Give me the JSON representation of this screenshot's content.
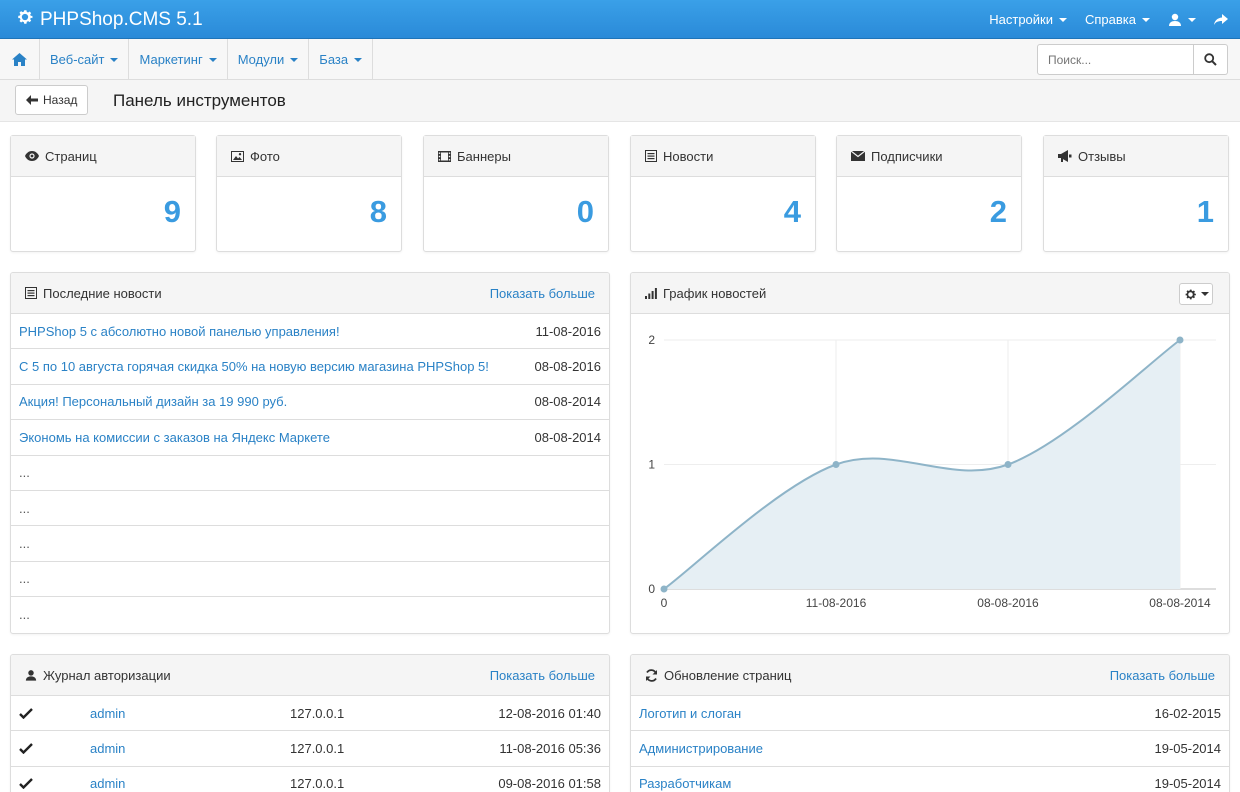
{
  "app": {
    "title": "PHPShop.CMS 5.1"
  },
  "topnav": {
    "settings": "Настройки",
    "help": "Справка"
  },
  "subnav": {
    "items": [
      "Веб-сайт",
      "Маркетинг",
      "Модули",
      "База"
    ]
  },
  "search": {
    "placeholder": "Поиск..."
  },
  "header": {
    "back": "Назад",
    "title": "Панель инструментов"
  },
  "stats": [
    {
      "label": "Страниц",
      "value": "9",
      "icon": "eye-icon"
    },
    {
      "label": "Фото",
      "value": "8",
      "icon": "picture-icon"
    },
    {
      "label": "Баннеры",
      "value": "0",
      "icon": "film-icon"
    },
    {
      "label": "Новости",
      "value": "4",
      "icon": "list-icon"
    },
    {
      "label": "Подписчики",
      "value": "2",
      "icon": "envelope-icon"
    },
    {
      "label": "Отзывы",
      "value": "1",
      "icon": "bullhorn-icon"
    }
  ],
  "news": {
    "title": "Последние новости",
    "more": "Показать больше",
    "items": [
      {
        "text": "PHPShop 5 с абсолютно новой панелью управления!",
        "date": "11-08-2016"
      },
      {
        "text": "С 5 по 10 августа горячая скидка 50% на новую версию магазина PHPShop 5!",
        "date": "08-08-2016"
      },
      {
        "text": "Акция! Персональный дизайн за 19 990 руб.",
        "date": "08-08-2014"
      },
      {
        "text": "Экономь на комиссии с заказов на Яндекс Маркете",
        "date": "08-08-2014"
      }
    ],
    "empty": [
      "...",
      "...",
      "...",
      "...",
      "..."
    ]
  },
  "graph": {
    "title": "График новостей"
  },
  "chart_data": {
    "type": "area",
    "categories": [
      "0",
      "11-08-2016",
      "08-08-2016",
      "08-08-2014"
    ],
    "values": [
      0,
      1,
      1,
      2
    ],
    "yticks": [
      "0",
      "1",
      "2"
    ],
    "ylim": [
      0,
      2
    ],
    "grid": true,
    "line_color": "#8eb4c8",
    "fill_color": "#e6eff4"
  },
  "auth": {
    "title": "Журнал авторизации",
    "more": "Показать больше",
    "rows": [
      {
        "user": "admin",
        "ip": "127.0.0.1",
        "date": "12-08-2016 01:40"
      },
      {
        "user": "admin",
        "ip": "127.0.0.1",
        "date": "11-08-2016 05:36"
      },
      {
        "user": "admin",
        "ip": "127.0.0.1",
        "date": "09-08-2016 01:58"
      }
    ]
  },
  "updates": {
    "title": "Обновление страниц",
    "more": "Показать больше",
    "rows": [
      {
        "text": "Логотип и слоган",
        "date": "16-02-2015"
      },
      {
        "text": "Администрирование",
        "date": "19-05-2014"
      },
      {
        "text": "Разработчикам",
        "date": "19-05-2014"
      }
    ]
  },
  "colors": {
    "accent": "#3a9be0",
    "navbar": "#2a8ad8",
    "link": "#2a82c6"
  }
}
